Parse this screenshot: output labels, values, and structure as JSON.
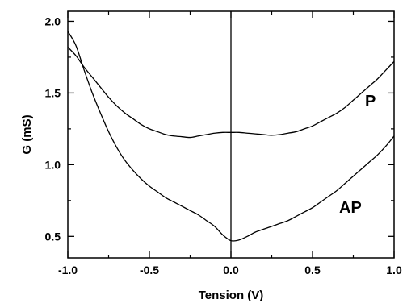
{
  "chart_data": {
    "type": "line",
    "title": "",
    "xlabel": "Tension (V)",
    "ylabel": "G  (mS)",
    "xlim": [
      -1.0,
      1.0
    ],
    "ylim": [
      0.35,
      2.07
    ],
    "xticks": [
      -1.0,
      -0.5,
      0.0,
      0.5,
      1.0
    ],
    "xtick_labels": [
      "-1.0",
      "-0.5",
      "0.0",
      "0.5",
      "1.0"
    ],
    "yticks": [
      0.5,
      1.0,
      1.5,
      2.0
    ],
    "ytick_labels": [
      "0.5",
      "1.0",
      "1.5",
      "2.0"
    ],
    "grid": false,
    "legend": "none",
    "annotations": [
      {
        "text": "P",
        "series": "P"
      },
      {
        "text": "AP",
        "series": "AP"
      }
    ],
    "vertical_line_x": 0.0,
    "series": [
      {
        "name": "P",
        "color": "#000000",
        "x": [
          -1.0,
          -0.95,
          -0.9,
          -0.85,
          -0.8,
          -0.75,
          -0.7,
          -0.65,
          -0.6,
          -0.55,
          -0.5,
          -0.45,
          -0.4,
          -0.35,
          -0.3,
          -0.25,
          -0.2,
          -0.15,
          -0.1,
          -0.05,
          0.0,
          0.05,
          0.1,
          0.15,
          0.2,
          0.25,
          0.3,
          0.35,
          0.4,
          0.45,
          0.5,
          0.55,
          0.6,
          0.65,
          0.7,
          0.75,
          0.8,
          0.85,
          0.9,
          0.95,
          1.0
        ],
        "y": [
          1.82,
          1.76,
          1.68,
          1.61,
          1.54,
          1.47,
          1.41,
          1.36,
          1.32,
          1.28,
          1.25,
          1.23,
          1.21,
          1.2,
          1.195,
          1.19,
          1.2,
          1.21,
          1.22,
          1.225,
          1.225,
          1.225,
          1.22,
          1.215,
          1.21,
          1.205,
          1.21,
          1.22,
          1.23,
          1.25,
          1.27,
          1.3,
          1.33,
          1.36,
          1.4,
          1.45,
          1.5,
          1.55,
          1.6,
          1.66,
          1.72
        ]
      },
      {
        "name": "AP",
        "color": "#000000",
        "x": [
          -1.0,
          -0.95,
          -0.9,
          -0.85,
          -0.8,
          -0.75,
          -0.7,
          -0.65,
          -0.6,
          -0.55,
          -0.5,
          -0.45,
          -0.4,
          -0.35,
          -0.3,
          -0.25,
          -0.2,
          -0.15,
          -0.1,
          -0.05,
          0.0,
          0.05,
          0.1,
          0.15,
          0.2,
          0.25,
          0.3,
          0.35,
          0.4,
          0.45,
          0.5,
          0.55,
          0.6,
          0.65,
          0.7,
          0.75,
          0.8,
          0.85,
          0.9,
          0.95,
          1.0
        ],
        "y": [
          1.93,
          1.83,
          1.66,
          1.5,
          1.36,
          1.23,
          1.12,
          1.03,
          0.96,
          0.9,
          0.85,
          0.81,
          0.77,
          0.74,
          0.71,
          0.68,
          0.65,
          0.61,
          0.57,
          0.51,
          0.47,
          0.475,
          0.5,
          0.53,
          0.55,
          0.57,
          0.59,
          0.61,
          0.64,
          0.67,
          0.7,
          0.74,
          0.78,
          0.82,
          0.87,
          0.92,
          0.97,
          1.02,
          1.07,
          1.13,
          1.2
        ]
      }
    ]
  }
}
